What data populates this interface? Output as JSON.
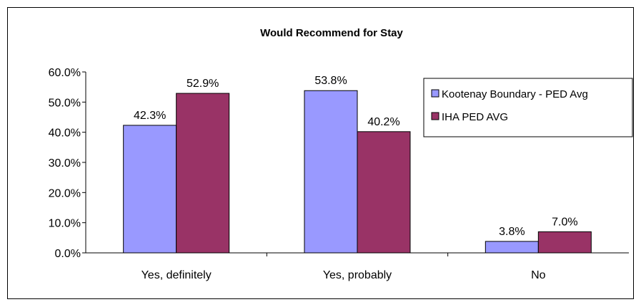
{
  "chart_data": {
    "type": "bar",
    "title": "Would Recommend for Stay",
    "xlabel": "",
    "ylabel": "",
    "categories": [
      "Yes, definitely",
      "Yes, probably",
      "No"
    ],
    "series": [
      {
        "name": "Kootenay Boundary - PED Avg",
        "color": "#9999ff",
        "values": [
          42.3,
          53.8,
          3.8
        ],
        "labels": [
          "42.3%",
          "53.8%",
          "3.8%"
        ]
      },
      {
        "name": "IHA PED AVG",
        "color": "#993366",
        "values": [
          52.9,
          40.2,
          7.0
        ],
        "labels": [
          "52.9%",
          "40.2%",
          "7.0%"
        ]
      }
    ],
    "ylim": [
      0,
      60
    ],
    "yticks": [
      "0.0%",
      "10.0%",
      "20.0%",
      "30.0%",
      "40.0%",
      "50.0%",
      "60.0%"
    ],
    "grid": false,
    "legend": "right"
  }
}
